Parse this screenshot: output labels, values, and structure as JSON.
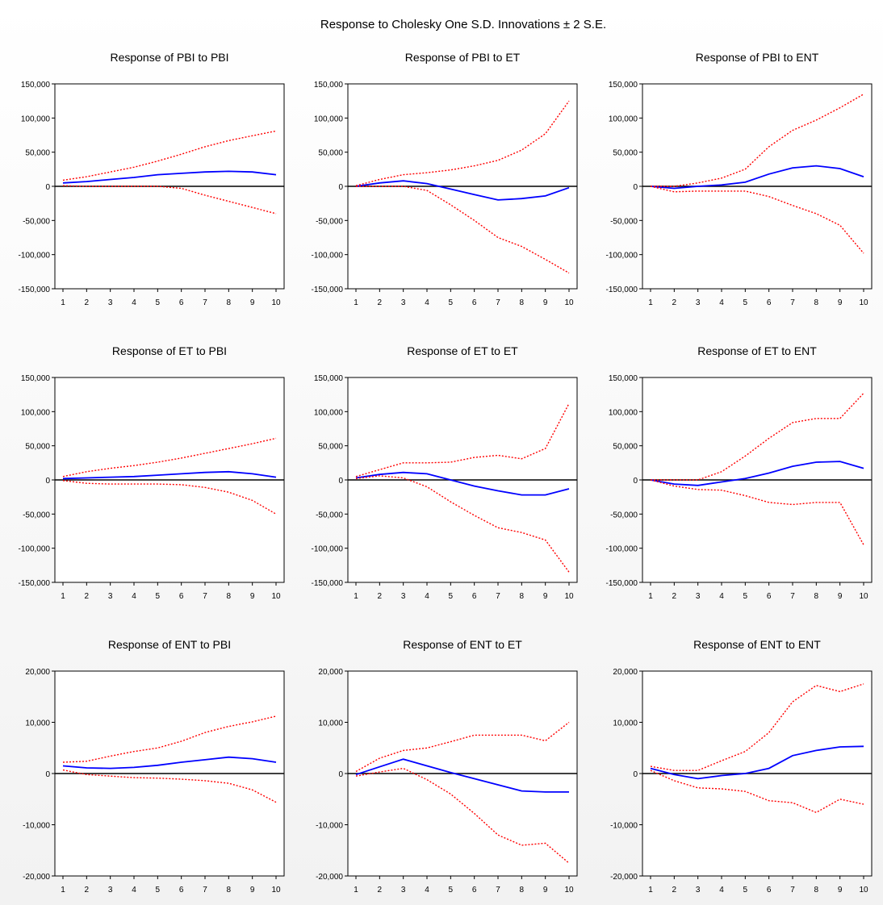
{
  "figure_title": "Response to Cholesky One S.D. Innovations ± 2 S.E.",
  "colors": {
    "response": "#0000ff",
    "bands": "#ff0000",
    "zero": "#000000"
  },
  "chart_data": [
    {
      "type": "line",
      "title": "Response of PBI to PBI",
      "x": [
        1,
        2,
        3,
        4,
        5,
        6,
        7,
        8,
        9,
        10
      ],
      "ylim": [
        -150000,
        150000
      ],
      "yticks": [
        150000,
        100000,
        50000,
        0,
        -50000,
        -100000,
        -150000
      ],
      "ytick_labels": [
        "150,000",
        "100,000",
        "50,000",
        "0",
        "-50,000",
        "-100,000",
        "-150,000"
      ],
      "series": [
        {
          "role": "response",
          "values": [
            5000,
            7000,
            10000,
            13000,
            17000,
            19000,
            21000,
            22000,
            21000,
            17000
          ]
        },
        {
          "role": "upper",
          "values": [
            9000,
            14000,
            21000,
            28000,
            37000,
            47000,
            58000,
            67000,
            74000,
            81000
          ]
        },
        {
          "role": "lower",
          "values": [
            1000,
            0,
            0,
            0,
            0,
            -3000,
            -13000,
            -22000,
            -31000,
            -40000
          ]
        }
      ]
    },
    {
      "type": "line",
      "title": "Response of PBI to ET",
      "x": [
        1,
        2,
        3,
        4,
        5,
        6,
        7,
        8,
        9,
        10
      ],
      "ylim": [
        -150000,
        150000
      ],
      "yticks": [
        150000,
        100000,
        50000,
        0,
        -50000,
        -100000,
        -150000
      ],
      "ytick_labels": [
        "150,000",
        "100,000",
        "50,000",
        "0",
        "-50,000",
        "-100,000",
        "-150,000"
      ],
      "series": [
        {
          "role": "response",
          "values": [
            0,
            5000,
            8000,
            4000,
            -4000,
            -12000,
            -20000,
            -18000,
            -14000,
            -2000
          ]
        },
        {
          "role": "upper",
          "values": [
            1000,
            10000,
            17000,
            20000,
            24000,
            30000,
            38000,
            53000,
            77000,
            125000
          ]
        },
        {
          "role": "lower",
          "values": [
            0,
            0,
            0,
            -6000,
            -27000,
            -50000,
            -75000,
            -88000,
            -107000,
            -127000
          ]
        }
      ]
    },
    {
      "type": "line",
      "title": "Response of PBI to ENT",
      "x": [
        1,
        2,
        3,
        4,
        5,
        6,
        7,
        8,
        9,
        10
      ],
      "ylim": [
        -150000,
        150000
      ],
      "yticks": [
        150000,
        100000,
        50000,
        0,
        -50000,
        -100000,
        -150000
      ],
      "ytick_labels": [
        "150,000",
        "100,000",
        "50,000",
        "0",
        "-50,000",
        "-100,000",
        "-150,000"
      ],
      "series": [
        {
          "role": "response",
          "values": [
            0,
            -3000,
            0,
            2000,
            6000,
            18000,
            27000,
            30000,
            26000,
            14000
          ]
        },
        {
          "role": "upper",
          "values": [
            0,
            0,
            5000,
            12000,
            25000,
            58000,
            82000,
            97000,
            115000,
            135000
          ]
        },
        {
          "role": "lower",
          "values": [
            0,
            -8000,
            -7000,
            -7000,
            -7000,
            -15000,
            -28000,
            -40000,
            -57000,
            -98000
          ]
        }
      ]
    },
    {
      "type": "line",
      "title": "Response of ET to PBI",
      "x": [
        1,
        2,
        3,
        4,
        5,
        6,
        7,
        8,
        9,
        10
      ],
      "ylim": [
        -150000,
        150000
      ],
      "yticks": [
        150000,
        100000,
        50000,
        0,
        -50000,
        -100000,
        -150000
      ],
      "ytick_labels": [
        "150,000",
        "100,000",
        "50,000",
        "0",
        "-50,000",
        "-100,000",
        "-150,000"
      ],
      "series": [
        {
          "role": "response",
          "values": [
            2000,
            3000,
            4000,
            5000,
            7000,
            9000,
            11000,
            12000,
            9000,
            4000
          ]
        },
        {
          "role": "upper",
          "values": [
            5000,
            12000,
            17000,
            21000,
            26000,
            32000,
            39000,
            46000,
            53000,
            61000
          ]
        },
        {
          "role": "lower",
          "values": [
            -1000,
            -5000,
            -6000,
            -6000,
            -6000,
            -7000,
            -11000,
            -18000,
            -30000,
            -50000
          ]
        }
      ]
    },
    {
      "type": "line",
      "title": "Response of ET to ET",
      "x": [
        1,
        2,
        3,
        4,
        5,
        6,
        7,
        8,
        9,
        10
      ],
      "ylim": [
        -150000,
        150000
      ],
      "yticks": [
        150000,
        100000,
        50000,
        0,
        -50000,
        -100000,
        -150000
      ],
      "ytick_labels": [
        "150,000",
        "100,000",
        "50,000",
        "0",
        "-50,000",
        "-100,000",
        "-150,000"
      ],
      "series": [
        {
          "role": "response",
          "values": [
            3000,
            8000,
            11000,
            9000,
            0,
            -9000,
            -16000,
            -22000,
            -22000,
            -13000
          ]
        },
        {
          "role": "upper",
          "values": [
            5000,
            15000,
            25000,
            25000,
            26000,
            33000,
            36000,
            31000,
            46000,
            112000
          ]
        },
        {
          "role": "lower",
          "values": [
            2000,
            6000,
            3000,
            -10000,
            -32000,
            -52000,
            -70000,
            -77000,
            -88000,
            -135000
          ]
        }
      ]
    },
    {
      "type": "line",
      "title": "Response of ET to ENT",
      "x": [
        1,
        2,
        3,
        4,
        5,
        6,
        7,
        8,
        9,
        10
      ],
      "ylim": [
        -150000,
        150000
      ],
      "yticks": [
        150000,
        100000,
        50000,
        0,
        -50000,
        -100000,
        -150000
      ],
      "ytick_labels": [
        "150,000",
        "100,000",
        "50,000",
        "0",
        "-50,000",
        "-100,000",
        "-150,000"
      ],
      "series": [
        {
          "role": "response",
          "values": [
            0,
            -6000,
            -8000,
            -3000,
            2000,
            10000,
            20000,
            26000,
            27000,
            17000
          ]
        },
        {
          "role": "upper",
          "values": [
            0,
            0,
            0,
            12000,
            35000,
            61000,
            84000,
            90000,
            90000,
            127000
          ]
        },
        {
          "role": "lower",
          "values": [
            0,
            -9000,
            -14000,
            -15000,
            -23000,
            -33000,
            -36000,
            -33000,
            -33000,
            -95000
          ]
        }
      ]
    },
    {
      "type": "line",
      "title": "Response of ENT to PBI",
      "x": [
        1,
        2,
        3,
        4,
        5,
        6,
        7,
        8,
        9,
        10
      ],
      "ylim": [
        -20000,
        20000
      ],
      "yticks": [
        20000,
        10000,
        0,
        -10000,
        -20000
      ],
      "ytick_labels": [
        "20,000",
        "10,000",
        "0",
        "-10,000",
        "-20,000"
      ],
      "series": [
        {
          "role": "response",
          "values": [
            1500,
            1100,
            1000,
            1200,
            1600,
            2200,
            2700,
            3200,
            2900,
            2200
          ]
        },
        {
          "role": "upper",
          "values": [
            2200,
            2400,
            3400,
            4300,
            5000,
            6300,
            8000,
            9200,
            10100,
            11200
          ]
        },
        {
          "role": "lower",
          "values": [
            700,
            -200,
            -500,
            -800,
            -900,
            -1100,
            -1400,
            -1900,
            -3200,
            -5600
          ]
        }
      ]
    },
    {
      "type": "line",
      "title": "Response of ENT to ET",
      "x": [
        1,
        2,
        3,
        4,
        5,
        6,
        7,
        8,
        9,
        10
      ],
      "ylim": [
        -20000,
        20000
      ],
      "yticks": [
        20000,
        10000,
        0,
        -10000,
        -20000
      ],
      "ytick_labels": [
        "20,000",
        "10,000",
        "0",
        "-10,000",
        "-20,000"
      ],
      "series": [
        {
          "role": "response",
          "values": [
            -200,
            1300,
            2800,
            1500,
            200,
            -1000,
            -2200,
            -3400,
            -3600,
            -3600
          ]
        },
        {
          "role": "upper",
          "values": [
            400,
            3000,
            4500,
            5000,
            6200,
            7500,
            7500,
            7500,
            6400,
            10000
          ]
        },
        {
          "role": "lower",
          "values": [
            -500,
            300,
            1000,
            -1200,
            -4000,
            -7800,
            -12000,
            -14000,
            -13600,
            -17500
          ]
        }
      ]
    },
    {
      "type": "line",
      "title": "Response of ENT to ENT",
      "x": [
        1,
        2,
        3,
        4,
        5,
        6,
        7,
        8,
        9,
        10
      ],
      "ylim": [
        -20000,
        20000
      ],
      "yticks": [
        20000,
        10000,
        0,
        -10000,
        -20000
      ],
      "ytick_labels": [
        "20,000",
        "10,000",
        "0",
        "-10,000",
        "-20,000"
      ],
      "series": [
        {
          "role": "response",
          "values": [
            1000,
            -200,
            -1000,
            -400,
            0,
            1000,
            3500,
            4500,
            5200,
            5300
          ]
        },
        {
          "role": "upper",
          "values": [
            1400,
            600,
            600,
            2500,
            4300,
            8000,
            14000,
            17200,
            16000,
            17500
          ]
        },
        {
          "role": "lower",
          "values": [
            600,
            -1400,
            -2800,
            -3000,
            -3500,
            -5300,
            -5700,
            -7600,
            -5000,
            -6000
          ]
        }
      ]
    }
  ]
}
